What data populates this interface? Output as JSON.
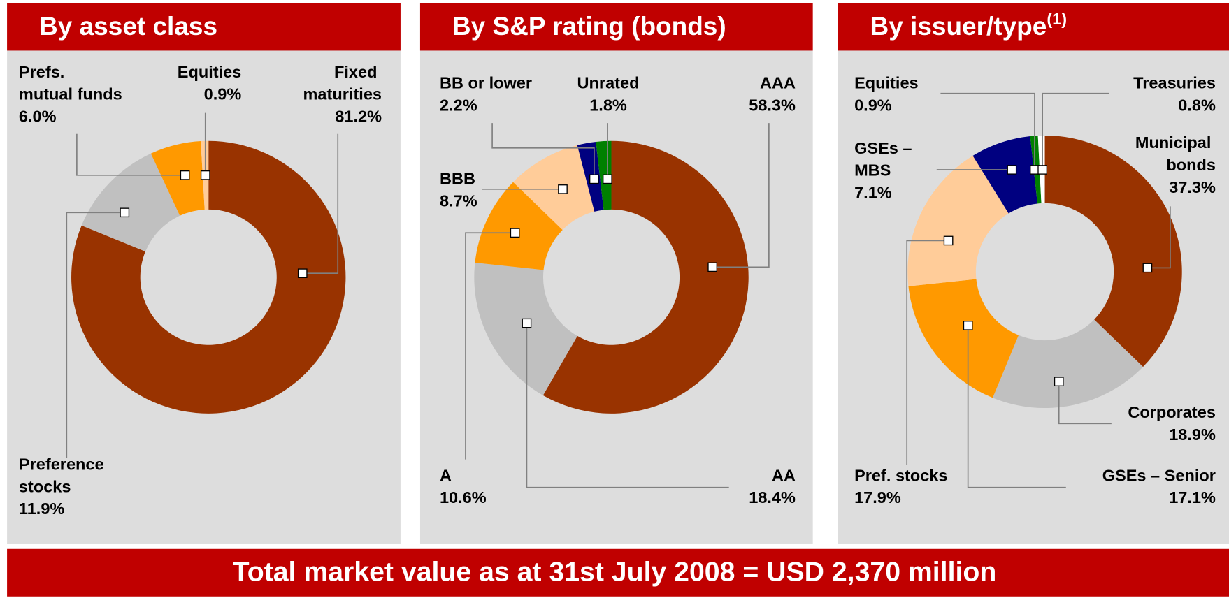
{
  "footer": "Total market value as at 31st July 2008 = USD 2,370 million",
  "chart_data": [
    {
      "type": "pie",
      "title": "By asset class",
      "categories": [
        "Fixed maturities",
        "Preference stocks",
        "Prefs. mutual funds",
        "Equities"
      ],
      "values": [
        81.2,
        11.9,
        6.0,
        0.9
      ],
      "value_labels": [
        "81.2%",
        "11.9%",
        "6.0%",
        "0.9%"
      ],
      "colors": [
        "#993300",
        "#c0c0c0",
        "#ff9900",
        "#ffcc99"
      ]
    },
    {
      "type": "pie",
      "title": "By S&P rating (bonds)",
      "categories": [
        "AAA",
        "AA",
        "A",
        "BBB",
        "BB or lower",
        "Unrated"
      ],
      "values": [
        58.3,
        18.4,
        10.6,
        8.7,
        2.2,
        1.8
      ],
      "value_labels": [
        "58.3%",
        "18.4%",
        "10.6%",
        "8.7%",
        "2.2%",
        "1.8%"
      ],
      "colors": [
        "#993300",
        "#c0c0c0",
        "#ff9900",
        "#ffcc99",
        "#000080",
        "#008000"
      ]
    },
    {
      "type": "pie",
      "title": "By issuer/type",
      "title_note": "(1)",
      "categories": [
        "Municipal bonds",
        "Corporates",
        "GSEs – Senior",
        "Pref. stocks",
        "GSEs – MBS",
        "Equities",
        "Treasuries"
      ],
      "values": [
        37.3,
        18.9,
        17.1,
        17.9,
        7.1,
        0.9,
        0.8
      ],
      "value_labels": [
        "37.3%",
        "18.9%",
        "17.1%",
        "17.9%",
        "7.1%",
        "0.9%",
        "0.8%"
      ],
      "colors": [
        "#993300",
        "#c0c0c0",
        "#ff9900",
        "#ffcc99",
        "#000080",
        "#008000",
        "#ffffff"
      ]
    }
  ]
}
